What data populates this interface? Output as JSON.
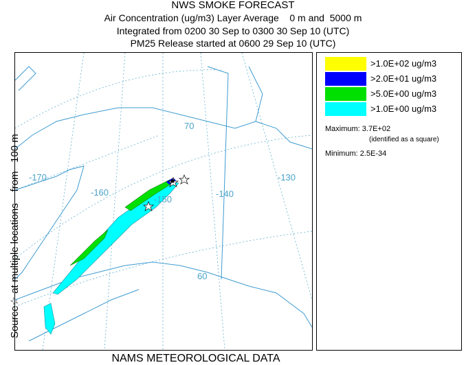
{
  "titles": {
    "main": "NWS SMOKE FORECAST",
    "line1": "Air Concentration (ug/m3) Layer Average    0 m and  5000 m",
    "line2": "Integrated from 0200 30 Sep to 0300 30 Sep 10 (UTC)",
    "line3": "PM25 Release started at 0600 29 Sep 10 (UTC)"
  },
  "side_label": {
    "part1": "Source",
    "star": "☆",
    "part2": " at multiple locations    from   100 m"
  },
  "map": {
    "graticule_labels": {
      "lon_m170": "-170",
      "lon_m160": "-160",
      "lon_m150": "-150",
      "lon_m140": "-140",
      "lon_m130": "-130",
      "lat_70": "70",
      "lat_60": "60"
    },
    "colors": {
      "graticule": "#4aa3c8",
      "coast": "#3d9bd1",
      "level1": "#00ffff",
      "level2": "#00e000",
      "level3": "#0000ff",
      "level4": "#ffff00"
    }
  },
  "legend": {
    "items": [
      {
        "label": ">1.0E+02 ug/m3",
        "color": "#ffff00"
      },
      {
        "label": ">2.0E+01 ug/m3",
        "color": "#0000ff"
      },
      {
        "label": ">5.0E+00 ug/m3",
        "color": "#00e000"
      },
      {
        "label": ">1.0E+00 ug/m3",
        "color": "#00ffff"
      }
    ],
    "maximum": "Maximum: 3.7E+02",
    "maximum_note": "(identified as a square)",
    "minimum": "Minimum: 2.5E-34"
  },
  "footer": "NAMS METEOROLOGICAL DATA"
}
